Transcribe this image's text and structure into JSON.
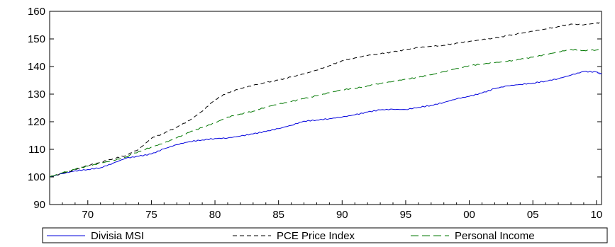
{
  "chart_data": {
    "type": "line",
    "title": "",
    "xlabel": "",
    "ylabel": "",
    "xlim": [
      1967,
      2010.4
    ],
    "ylim": [
      90,
      160
    ],
    "x_ticks": [
      "70",
      "75",
      "80",
      "85",
      "90",
      "95",
      "00",
      "05",
      "10"
    ],
    "y_ticks": [
      "90",
      "100",
      "110",
      "120",
      "130",
      "140",
      "150",
      "160"
    ],
    "grid": false,
    "legend_position": "bottom",
    "x": [
      1967,
      1968,
      1969,
      1970,
      1971,
      1972,
      1973,
      1974,
      1975,
      1976,
      1977,
      1978,
      1979,
      1980,
      1981,
      1982,
      1983,
      1984,
      1985,
      1986,
      1987,
      1988,
      1989,
      1990,
      1991,
      1992,
      1993,
      1994,
      1995,
      1996,
      1997,
      1998,
      1999,
      2000,
      2001,
      2002,
      2003,
      2004,
      2005,
      2006,
      2007,
      2008,
      2009,
      2010,
      2010.4
    ],
    "series": [
      {
        "name": "Divisia MSI",
        "color": "#0000dd",
        "dash": "solid",
        "values": [
          100.0,
          101.2,
          102.2,
          102.7,
          103.3,
          105.0,
          106.8,
          107.5,
          108.3,
          110.2,
          111.7,
          112.8,
          113.4,
          113.9,
          114.1,
          114.8,
          115.6,
          116.5,
          117.5,
          118.7,
          120.2,
          120.6,
          121.1,
          121.7,
          122.5,
          123.5,
          124.3,
          124.5,
          124.4,
          125.2,
          125.9,
          127.0,
          128.3,
          129.2,
          130.4,
          132.0,
          133.0,
          133.5,
          134.0,
          134.7,
          135.6,
          136.9,
          138.2,
          138.0,
          137.2
        ]
      },
      {
        "name": "PCE Price Index",
        "color": "#000000",
        "dash": "6,4",
        "values": [
          100.0,
          101.3,
          102.6,
          104.2,
          105.3,
          106.6,
          107.8,
          110.0,
          114.0,
          115.8,
          118.0,
          120.5,
          123.8,
          128.0,
          130.5,
          132.0,
          133.2,
          134.2,
          135.1,
          136.2,
          137.3,
          138.7,
          140.3,
          142.1,
          143.1,
          144.0,
          144.6,
          145.3,
          146.1,
          146.9,
          147.3,
          147.7,
          148.5,
          149.1,
          149.7,
          150.3,
          151.2,
          152.0,
          152.8,
          153.6,
          154.5,
          155.4,
          155.1,
          155.7,
          155.9
        ]
      },
      {
        "name": "Personal Income",
        "color": "#007700",
        "dash": "11,5",
        "values": [
          100.0,
          101.5,
          102.8,
          103.9,
          105.0,
          106.0,
          107.2,
          109.2,
          110.8,
          112.3,
          114.2,
          116.2,
          117.9,
          119.6,
          121.7,
          122.8,
          123.8,
          125.3,
          126.4,
          127.3,
          128.4,
          129.4,
          130.5,
          131.6,
          132.1,
          133.0,
          133.9,
          134.6,
          135.4,
          136.1,
          137.0,
          138.1,
          139.3,
          140.3,
          140.9,
          141.4,
          141.9,
          142.6,
          143.4,
          144.3,
          145.3,
          146.2,
          145.8,
          146.0,
          146.3
        ]
      }
    ]
  }
}
